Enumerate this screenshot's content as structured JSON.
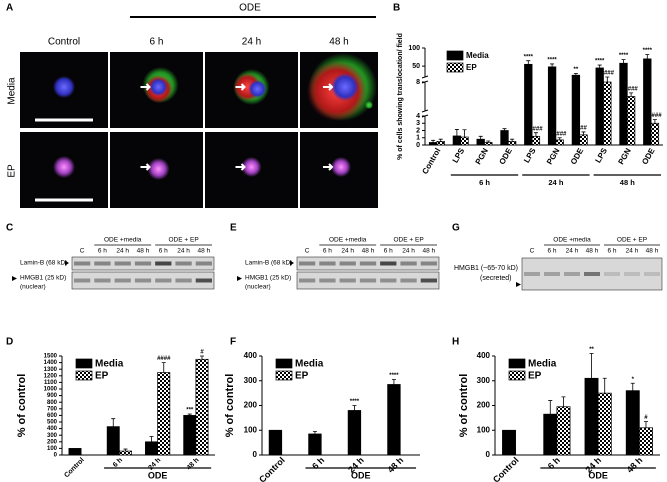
{
  "panel_labels": [
    "A",
    "B",
    "C",
    "D",
    "E",
    "F",
    "G",
    "H"
  ],
  "microscopy": {
    "header": "ODE",
    "columns": [
      "Control",
      "6 h",
      "24 h",
      "48 h"
    ],
    "rows": [
      "Media",
      "EP"
    ]
  },
  "blots": [
    {
      "rows": [
        "Lamin-B (68 kD)",
        "HMGB1 (25 kD)",
        "(nuclear)"
      ],
      "groups": [
        "ODE +media",
        "ODE + EP"
      ],
      "lanes": [
        "C",
        "6 h",
        "24 h",
        "48 h",
        "6 h",
        "24 h",
        "48 h"
      ]
    },
    {
      "rows": [
        "Lamin-B (68 kD)",
        "HMGB1 (25 kD)",
        "(nuclear)"
      ],
      "groups": [
        "ODE +media",
        "ODE + EP"
      ],
      "lanes": [
        "C",
        "6 h",
        "24 h",
        "48 h",
        "6 h",
        "24 h",
        "48 h"
      ]
    },
    {
      "rows": [
        "HMGB1 (~65-70 kD)",
        "(secreted)"
      ],
      "groups": [
        "ODE +media",
        "ODE + EP"
      ],
      "lanes": [
        "C",
        "6 h",
        "24 h",
        "48 h",
        "6 h",
        "24 h",
        "48 h"
      ]
    }
  ],
  "chart_data": [
    {
      "type": "bar",
      "ylabel": "% of cells showing translocation/ field",
      "categories": [
        "Control",
        "LPS",
        "PGN",
        "ODE",
        "LPS",
        "PGN",
        "ODE",
        "LPS",
        "PGN",
        "ODE"
      ],
      "x_groups": [
        "6 h",
        "24 h",
        "48 h"
      ],
      "y_segments": [
        {
          "ylim": [
            0,
            4
          ],
          "yticks": [
            0,
            1,
            2,
            3
          ]
        },
        {
          "ylim": [
            4,
            8
          ],
          "yticks": [
            4,
            8
          ]
        },
        {
          "ylim": [
            20,
            100
          ],
          "yticks": [
            50,
            100
          ]
        }
      ],
      "series": [
        {
          "name": "Media",
          "color": "#000000",
          "values": [
            0.35,
            1.25,
            0.8,
            2.0,
            55,
            48,
            25,
            45,
            58,
            70
          ],
          "errors": [
            0.3,
            0.9,
            0.4,
            0.25,
            10,
            8,
            5,
            8,
            10,
            12
          ],
          "annotations": [
            null,
            null,
            null,
            null,
            "****",
            "****",
            "**",
            "****",
            "****",
            "****"
          ]
        },
        {
          "name": "EP",
          "color": "#000000",
          "hatch": "checker",
          "values": [
            0.5,
            1.1,
            0.35,
            0.5,
            1.2,
            0.7,
            1.4,
            8,
            6,
            3
          ],
          "errors": [
            0.3,
            1.0,
            0.2,
            0.3,
            0.5,
            0.3,
            0.4,
            0.5,
            0.5,
            0.5
          ],
          "annotations": [
            null,
            null,
            null,
            null,
            "####",
            "####",
            "##",
            "####",
            "####",
            "####"
          ]
        }
      ]
    },
    {
      "type": "bar",
      "ylabel": "% of control",
      "xlabel": "ODE",
      "categories": [
        "Control",
        "6 h",
        "24 h",
        "48 h"
      ],
      "ylim": [
        0,
        1500
      ],
      "yticks": [
        0,
        100,
        200,
        300,
        400,
        500,
        600,
        700,
        800,
        900,
        1000,
        1100,
        1200,
        1300,
        1400,
        1500
      ],
      "series": [
        {
          "name": "Media",
          "color": "#000000",
          "values": [
            100,
            430,
            200,
            600
          ],
          "errors": [
            0,
            120,
            80,
            20
          ],
          "annotations": [
            null,
            null,
            null,
            "***"
          ]
        },
        {
          "name": "EP",
          "color": "#000000",
          "hatch": "checker",
          "values": [
            null,
            60,
            1250,
            1450
          ],
          "errors": [
            null,
            30,
            150,
            50
          ],
          "annotations": [
            null,
            null,
            "####",
            "#"
          ]
        }
      ]
    },
    {
      "type": "bar",
      "ylabel": "% of control",
      "xlabel": "ODE",
      "categories": [
        "Control",
        "6 h",
        "24 h",
        "48 h"
      ],
      "ylim": [
        0,
        400
      ],
      "yticks": [
        0,
        100,
        200,
        300,
        400
      ],
      "series": [
        {
          "name": "Media",
          "color": "#000000",
          "values": [
            100,
            85,
            180,
            285
          ],
          "errors": [
            0,
            10,
            20,
            20
          ],
          "annotations": [
            null,
            null,
            "****",
            "****"
          ]
        },
        {
          "name": "EP",
          "color": "#000000",
          "hatch": "checker",
          "values": [
            null,
            null,
            null,
            null
          ],
          "errors": [
            null,
            null,
            null,
            null
          ],
          "annotations": [
            null,
            null,
            null,
            null
          ]
        }
      ]
    },
    {
      "type": "bar",
      "ylabel": "% of control",
      "xlabel": "ODE",
      "categories": [
        "Control",
        "6 h",
        "24 h",
        "48 h"
      ],
      "ylim": [
        0,
        400
      ],
      "yticks": [
        0,
        100,
        200,
        300,
        400
      ],
      "series": [
        {
          "name": "Media",
          "color": "#000000",
          "values": [
            100,
            165,
            310,
            260
          ],
          "errors": [
            0,
            55,
            100,
            30
          ],
          "annotations": [
            null,
            null,
            "**",
            "*"
          ]
        },
        {
          "name": "EP",
          "color": "#000000",
          "hatch": "checker",
          "values": [
            null,
            195,
            250,
            110
          ],
          "errors": [
            null,
            40,
            60,
            25
          ],
          "annotations": [
            null,
            null,
            null,
            "#"
          ]
        }
      ]
    }
  ]
}
